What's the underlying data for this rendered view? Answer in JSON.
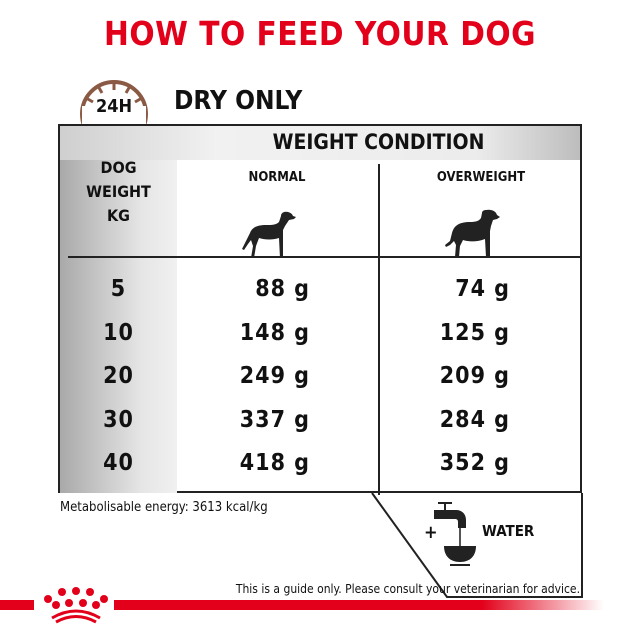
{
  "title": "HOW TO FEED YOUR DOG",
  "clock_label": "24H",
  "subtitle": "DRY ONLY",
  "table": {
    "group_header": "WEIGHT CONDITION",
    "row_header": [
      "DOG",
      "WEIGHT",
      "KG"
    ],
    "columns": [
      {
        "label": "NORMAL",
        "icon": "normal-dog-icon"
      },
      {
        "label": "OVERWEIGHT",
        "icon": "overweight-dog-icon"
      }
    ],
    "rows": [
      {
        "weight": "5",
        "normal": "88 g",
        "overweight": "74 g"
      },
      {
        "weight": "10",
        "normal": "148 g",
        "overweight": "125 g"
      },
      {
        "weight": "20",
        "normal": "249 g",
        "overweight": "209 g"
      },
      {
        "weight": "30",
        "normal": "337 g",
        "overweight": "284 g"
      },
      {
        "weight": "40",
        "normal": "418 g",
        "overweight": "352 g"
      }
    ]
  },
  "energy": "Metabolisable energy: 3613 kcal/kg",
  "water": {
    "plus": "+",
    "label": "WATER",
    "icon": "tap-bowl-icon"
  },
  "disclaimer": "This is a guide only. Please consult your veterinarian for advice.",
  "colors": {
    "brand_red": "#e2001a",
    "clock_brown": "#8b5a45"
  }
}
